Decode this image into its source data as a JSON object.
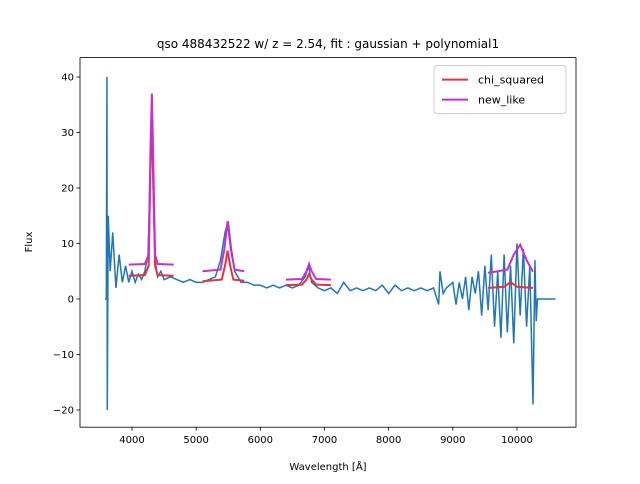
{
  "chart_data": {
    "type": "line",
    "title": "qso 488432522 w/ z = 2.54, fit : gaussian + polynomial1",
    "xlabel": "Wavelength [Å]",
    "ylabel": "Flux",
    "xlim": [
      3190,
      10920
    ],
    "ylim": [
      -23.1,
      43.5
    ],
    "xticks": [
      4000,
      5000,
      6000,
      7000,
      8000,
      9000,
      10000
    ],
    "yticks": [
      {
        "value": -20,
        "label": "−20"
      },
      {
        "value": -10,
        "label": "−10"
      },
      0,
      10,
      20,
      30,
      40
    ],
    "legend": "upper right",
    "series": [
      {
        "color": "#1f77b4",
        "x": [
          3580,
          3600,
          3610,
          3615,
          3630,
          3660,
          3700,
          3750,
          3800,
          3850,
          3900,
          3950,
          4000,
          4050,
          4100,
          4150,
          4200,
          4250,
          4290,
          4310,
          4330,
          4360,
          4400,
          4450,
          4500,
          4600,
          4700,
          4800,
          4900,
          5000,
          5100,
          5200,
          5300,
          5380,
          5450,
          5500,
          5550,
          5600,
          5700,
          5800,
          5900,
          6000,
          6100,
          6200,
          6300,
          6400,
          6500,
          6600,
          6700,
          6750,
          6800,
          6900,
          7000,
          7100,
          7200,
          7300,
          7400,
          7500,
          7600,
          7700,
          7800,
          7900,
          8000,
          8100,
          8200,
          8300,
          8400,
          8500,
          8600,
          8700,
          8780,
          8800,
          8850,
          8900,
          9000,
          9050,
          9100,
          9150,
          9200,
          9250,
          9300,
          9350,
          9400,
          9450,
          9500,
          9550,
          9600,
          9650,
          9700,
          9750,
          9800,
          9850,
          9900,
          9950,
          10000,
          10050,
          10100,
          10150,
          10200,
          10250,
          10280,
          10300,
          10320,
          10600
        ],
        "values": [
          0,
          0,
          40,
          -20,
          15,
          5,
          12,
          2,
          8,
          3,
          6,
          3,
          5,
          3,
          4.5,
          3.5,
          5,
          8,
          25,
          37,
          20,
          7,
          4,
          5,
          3.5,
          4,
          3.5,
          3,
          3.5,
          3,
          3,
          3.5,
          4,
          7,
          12,
          14,
          9,
          5,
          3,
          3,
          2.5,
          2.5,
          2,
          2.5,
          2,
          2.5,
          2,
          2.5,
          4,
          6,
          3,
          2,
          1.5,
          2,
          1,
          3,
          1.5,
          2,
          1.5,
          2,
          1.5,
          2.5,
          1,
          2.5,
          1.5,
          2,
          1.5,
          2,
          1.5,
          2,
          -1,
          5,
          1,
          2,
          3,
          -1,
          3,
          0,
          4,
          -2,
          4,
          1,
          5,
          -3,
          6,
          -2,
          8,
          -5,
          5,
          -7,
          8,
          -6,
          6,
          -8,
          10,
          -3,
          9,
          -5,
          6,
          -19,
          7,
          -4,
          0,
          0
        ]
      },
      {
        "name": "chi_squared",
        "color": "#e6323d",
        "x": [
          3950,
          4200,
          4260,
          4290,
          4310,
          4330,
          4360,
          4400,
          4650,
          null,
          5100,
          5400,
          5450,
          5490,
          5530,
          5580,
          5750,
          null,
          6400,
          6650,
          6720,
          6760,
          6800,
          6870,
          7100,
          null,
          9550,
          9800,
          9870,
          9900,
          9930,
          10000,
          10250
        ],
        "values": [
          4.2,
          4.3,
          6,
          25,
          30,
          22,
          6,
          4.3,
          4.2,
          null,
          3.2,
          3.5,
          6,
          8.7,
          6,
          3.5,
          3.3,
          null,
          2.5,
          2.6,
          3.5,
          4.5,
          3.5,
          2.6,
          2.5,
          null,
          2,
          2.2,
          2.8,
          3,
          2.8,
          2.2,
          2
        ]
      },
      {
        "name": "new_like",
        "color": "#c72fcf",
        "x": [
          3950,
          4200,
          4260,
          4290,
          4310,
          4330,
          4360,
          4400,
          4650,
          null,
          5100,
          5380,
          5440,
          5490,
          5540,
          5600,
          5750,
          null,
          6400,
          6650,
          6720,
          6760,
          6800,
          6870,
          7100,
          null,
          9550,
          9850,
          9950,
          10050,
          10150,
          10250
        ],
        "values": [
          6.2,
          6.3,
          8,
          28,
          37,
          26,
          8,
          6.3,
          6.2,
          null,
          5,
          5.3,
          9,
          14,
          9,
          5.3,
          5,
          null,
          3.5,
          3.6,
          5,
          6.3,
          5,
          3.6,
          3.5,
          null,
          4.7,
          5.3,
          8,
          9.8,
          7,
          4.9
        ]
      }
    ]
  }
}
